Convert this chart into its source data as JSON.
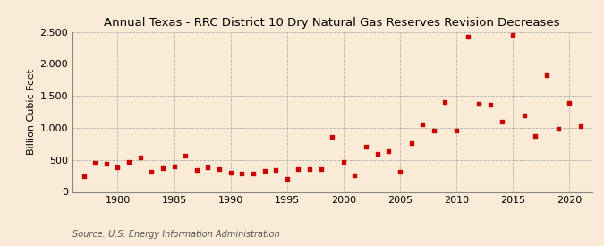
{
  "title": "Annual Texas - RRC District 10 Dry Natural Gas Reserves Revision Decreases",
  "ylabel": "Billion Cubic Feet",
  "source": "Source: U.S. Energy Information Administration",
  "background_color": "#faebd7",
  "plot_bg_color": "#faebd7",
  "marker_color": "#cc0000",
  "years": [
    1977,
    1978,
    1979,
    1980,
    1981,
    1982,
    1983,
    1984,
    1985,
    1986,
    1987,
    1988,
    1989,
    1990,
    1991,
    1992,
    1993,
    1994,
    1995,
    1996,
    1997,
    1998,
    1999,
    2000,
    2001,
    2002,
    2003,
    2004,
    2005,
    2006,
    2007,
    2008,
    2009,
    2010,
    2011,
    2012,
    2013,
    2014,
    2015,
    2016,
    2017,
    2018,
    2019,
    2020,
    2021
  ],
  "values": [
    250,
    460,
    440,
    380,
    470,
    540,
    320,
    370,
    395,
    560,
    340,
    385,
    355,
    300,
    290,
    290,
    330,
    340,
    200,
    350,
    350,
    350,
    860,
    470,
    260,
    700,
    600,
    630,
    310,
    760,
    1050,
    960,
    1400,
    960,
    2420,
    1380,
    1360,
    1100,
    2460,
    1190,
    870,
    1820,
    990,
    1390,
    1030
  ],
  "ylim": [
    0,
    2500
  ],
  "yticks": [
    0,
    500,
    1000,
    1500,
    2000,
    2500
  ],
  "ytick_labels": [
    "0",
    "500",
    "1,000",
    "1,500",
    "2,000",
    "2,500"
  ],
  "xlim": [
    1976,
    2022
  ],
  "xticks": [
    1980,
    1985,
    1990,
    1995,
    2000,
    2005,
    2010,
    2015,
    2020
  ],
  "grid_color": "#aaaaaa",
  "title_fontsize": 9.5,
  "label_fontsize": 8,
  "tick_fontsize": 8,
  "source_fontsize": 7
}
